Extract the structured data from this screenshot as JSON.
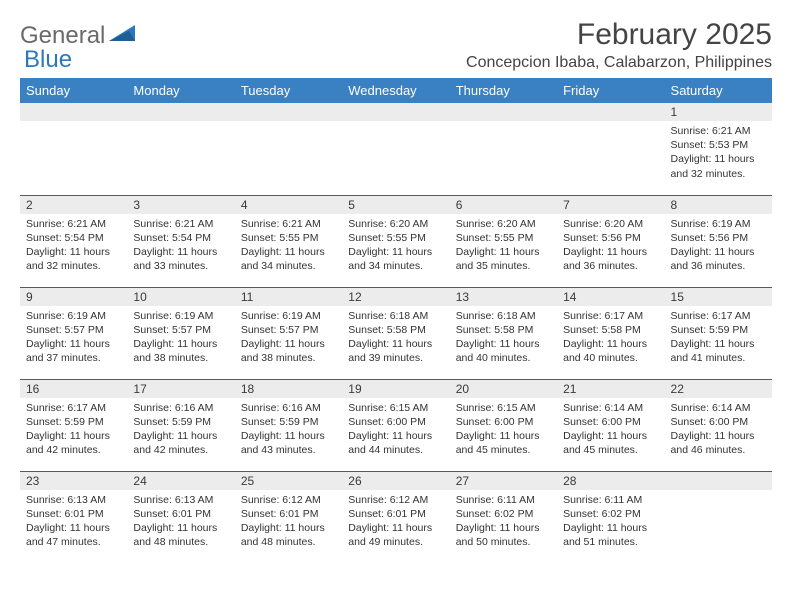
{
  "brand": {
    "part1": "General",
    "part2": "Blue"
  },
  "title": "February 2025",
  "location": "Concepcion Ibaba, Calabarzon, Philippines",
  "colors": {
    "header_bg": "#3a81c4",
    "header_text": "#ffffff",
    "daynum_bg": "#ececec",
    "text": "#333333",
    "brand_gray": "#6a6a6a",
    "brand_blue": "#2d78bc",
    "cell_border": "#5a5a5a"
  },
  "day_headers": [
    "Sunday",
    "Monday",
    "Tuesday",
    "Wednesday",
    "Thursday",
    "Friday",
    "Saturday"
  ],
  "weeks": [
    [
      {
        "n": "",
        "lines": []
      },
      {
        "n": "",
        "lines": []
      },
      {
        "n": "",
        "lines": []
      },
      {
        "n": "",
        "lines": []
      },
      {
        "n": "",
        "lines": []
      },
      {
        "n": "",
        "lines": []
      },
      {
        "n": "1",
        "lines": [
          "Sunrise: 6:21 AM",
          "Sunset: 5:53 PM",
          "Daylight: 11 hours and 32 minutes."
        ]
      }
    ],
    [
      {
        "n": "2",
        "lines": [
          "Sunrise: 6:21 AM",
          "Sunset: 5:54 PM",
          "Daylight: 11 hours and 32 minutes."
        ]
      },
      {
        "n": "3",
        "lines": [
          "Sunrise: 6:21 AM",
          "Sunset: 5:54 PM",
          "Daylight: 11 hours and 33 minutes."
        ]
      },
      {
        "n": "4",
        "lines": [
          "Sunrise: 6:21 AM",
          "Sunset: 5:55 PM",
          "Daylight: 11 hours and 34 minutes."
        ]
      },
      {
        "n": "5",
        "lines": [
          "Sunrise: 6:20 AM",
          "Sunset: 5:55 PM",
          "Daylight: 11 hours and 34 minutes."
        ]
      },
      {
        "n": "6",
        "lines": [
          "Sunrise: 6:20 AM",
          "Sunset: 5:55 PM",
          "Daylight: 11 hours and 35 minutes."
        ]
      },
      {
        "n": "7",
        "lines": [
          "Sunrise: 6:20 AM",
          "Sunset: 5:56 PM",
          "Daylight: 11 hours and 36 minutes."
        ]
      },
      {
        "n": "8",
        "lines": [
          "Sunrise: 6:19 AM",
          "Sunset: 5:56 PM",
          "Daylight: 11 hours and 36 minutes."
        ]
      }
    ],
    [
      {
        "n": "9",
        "lines": [
          "Sunrise: 6:19 AM",
          "Sunset: 5:57 PM",
          "Daylight: 11 hours and 37 minutes."
        ]
      },
      {
        "n": "10",
        "lines": [
          "Sunrise: 6:19 AM",
          "Sunset: 5:57 PM",
          "Daylight: 11 hours and 38 minutes."
        ]
      },
      {
        "n": "11",
        "lines": [
          "Sunrise: 6:19 AM",
          "Sunset: 5:57 PM",
          "Daylight: 11 hours and 38 minutes."
        ]
      },
      {
        "n": "12",
        "lines": [
          "Sunrise: 6:18 AM",
          "Sunset: 5:58 PM",
          "Daylight: 11 hours and 39 minutes."
        ]
      },
      {
        "n": "13",
        "lines": [
          "Sunrise: 6:18 AM",
          "Sunset: 5:58 PM",
          "Daylight: 11 hours and 40 minutes."
        ]
      },
      {
        "n": "14",
        "lines": [
          "Sunrise: 6:17 AM",
          "Sunset: 5:58 PM",
          "Daylight: 11 hours and 40 minutes."
        ]
      },
      {
        "n": "15",
        "lines": [
          "Sunrise: 6:17 AM",
          "Sunset: 5:59 PM",
          "Daylight: 11 hours and 41 minutes."
        ]
      }
    ],
    [
      {
        "n": "16",
        "lines": [
          "Sunrise: 6:17 AM",
          "Sunset: 5:59 PM",
          "Daylight: 11 hours and 42 minutes."
        ]
      },
      {
        "n": "17",
        "lines": [
          "Sunrise: 6:16 AM",
          "Sunset: 5:59 PM",
          "Daylight: 11 hours and 42 minutes."
        ]
      },
      {
        "n": "18",
        "lines": [
          "Sunrise: 6:16 AM",
          "Sunset: 5:59 PM",
          "Daylight: 11 hours and 43 minutes."
        ]
      },
      {
        "n": "19",
        "lines": [
          "Sunrise: 6:15 AM",
          "Sunset: 6:00 PM",
          "Daylight: 11 hours and 44 minutes."
        ]
      },
      {
        "n": "20",
        "lines": [
          "Sunrise: 6:15 AM",
          "Sunset: 6:00 PM",
          "Daylight: 11 hours and 45 minutes."
        ]
      },
      {
        "n": "21",
        "lines": [
          "Sunrise: 6:14 AM",
          "Sunset: 6:00 PM",
          "Daylight: 11 hours and 45 minutes."
        ]
      },
      {
        "n": "22",
        "lines": [
          "Sunrise: 6:14 AM",
          "Sunset: 6:00 PM",
          "Daylight: 11 hours and 46 minutes."
        ]
      }
    ],
    [
      {
        "n": "23",
        "lines": [
          "Sunrise: 6:13 AM",
          "Sunset: 6:01 PM",
          "Daylight: 11 hours and 47 minutes."
        ]
      },
      {
        "n": "24",
        "lines": [
          "Sunrise: 6:13 AM",
          "Sunset: 6:01 PM",
          "Daylight: 11 hours and 48 minutes."
        ]
      },
      {
        "n": "25",
        "lines": [
          "Sunrise: 6:12 AM",
          "Sunset: 6:01 PM",
          "Daylight: 11 hours and 48 minutes."
        ]
      },
      {
        "n": "26",
        "lines": [
          "Sunrise: 6:12 AM",
          "Sunset: 6:01 PM",
          "Daylight: 11 hours and 49 minutes."
        ]
      },
      {
        "n": "27",
        "lines": [
          "Sunrise: 6:11 AM",
          "Sunset: 6:02 PM",
          "Daylight: 11 hours and 50 minutes."
        ]
      },
      {
        "n": "28",
        "lines": [
          "Sunrise: 6:11 AM",
          "Sunset: 6:02 PM",
          "Daylight: 11 hours and 51 minutes."
        ]
      },
      {
        "n": "",
        "lines": []
      }
    ]
  ]
}
